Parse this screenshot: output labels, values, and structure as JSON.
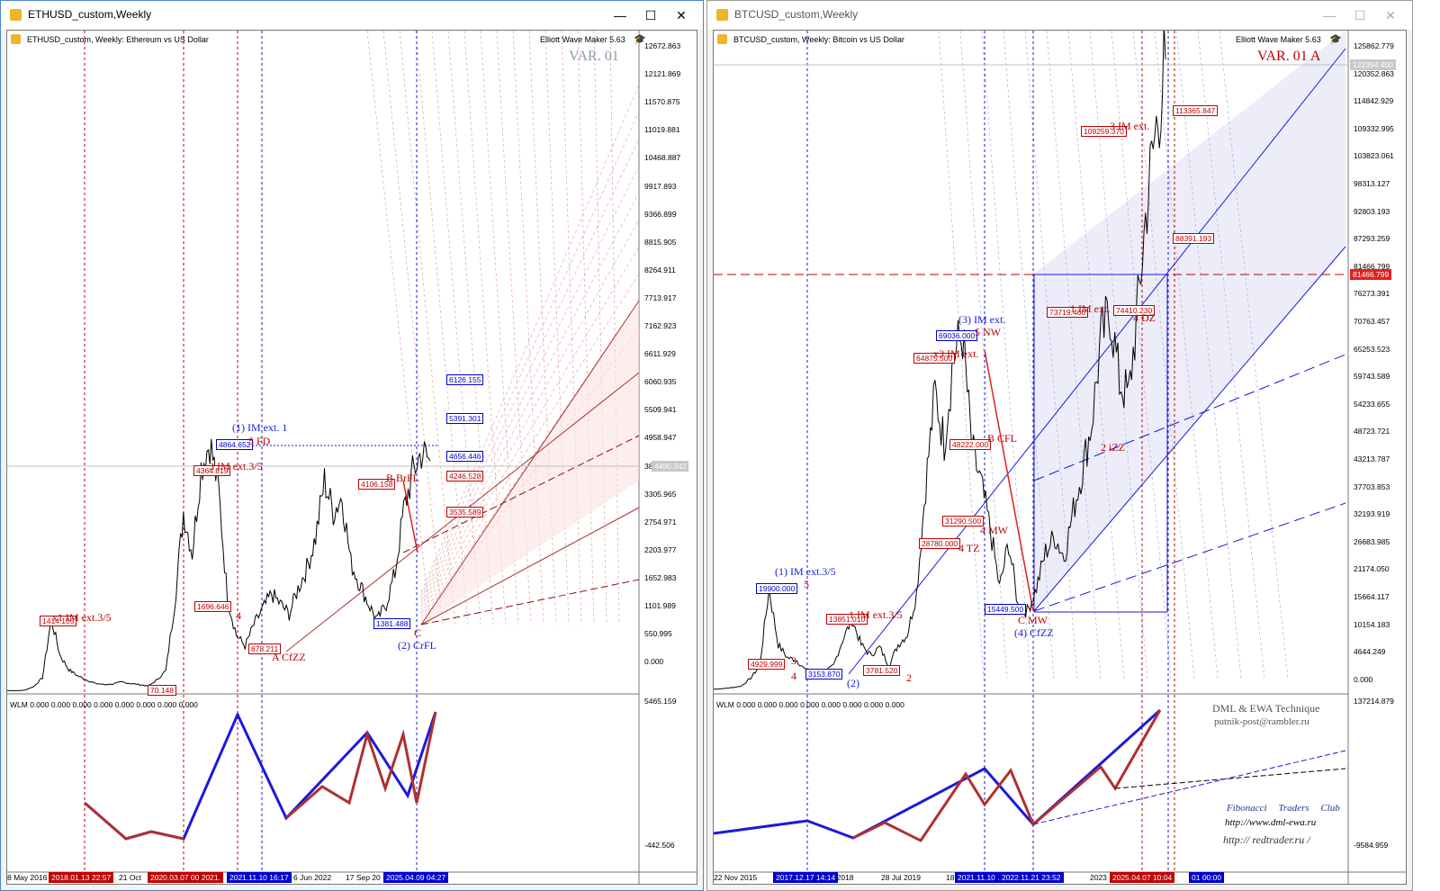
{
  "eth": {
    "window_title": "ETHUSD_custom,Weekly",
    "chart_title": "ETHUSD_custom, Weekly:  Ethereum vs US Dollar",
    "plugin": "Elliott Wave Maker 5.63",
    "var_label": "VAR. 01",
    "price_axis": [
      "12672.863",
      "12121.869",
      "11570.875",
      "11019.881",
      "10468.887",
      "9917.893",
      "9366.899",
      "8815.905",
      "8264.911",
      "7713.917",
      "7162.923",
      "6611.929",
      "6060.935",
      "5509.941",
      "4958.947",
      "3856.959",
      "3305.965",
      "2754.971",
      "2203.977",
      "1652.983",
      "1101.989",
      "550.995",
      "0.000"
    ],
    "current_price": "4490.342",
    "ind_axis": [
      "5465.159",
      "-442.506"
    ],
    "indicator_label": "WLM 0.000 0.000 0.000 0.000 0.000 0.000 0.000 0.000",
    "dates": [
      "8 May 2016",
      "21 Oct",
      "6 Jun 2022",
      "17 Sep 20"
    ],
    "date_markers": [
      {
        "text": "2018.01.13 22:57",
        "color": "red"
      },
      {
        "text": "2020.03.07 00 2021.",
        "color": "red"
      },
      {
        "text": "2021.11.10 16:17",
        "color": "blue"
      },
      {
        "text": "2025.04.09 04:27",
        "color": "blue"
      }
    ],
    "price_boxes": [
      {
        "text": "4864.652",
        "color": "blue"
      },
      {
        "text": "4364.819",
        "color": "red"
      },
      {
        "text": "4106.158",
        "color": "red"
      },
      {
        "text": "1696.646",
        "color": "red"
      },
      {
        "text": "1414.105",
        "color": "red"
      },
      {
        "text": "878.211",
        "color": "red"
      },
      {
        "text": "70.148",
        "color": "red"
      },
      {
        "text": "1381.488",
        "color": "blue"
      },
      {
        "text": "6126.155",
        "color": "blue"
      },
      {
        "text": "5391.301",
        "color": "blue"
      },
      {
        "text": "4656.446",
        "color": "blue"
      },
      {
        "text": "4246.528",
        "color": "red"
      },
      {
        "text": "3535.589",
        "color": "red"
      }
    ],
    "wave_labels": [
      {
        "text": "(1) IM ext. 1",
        "color": "blue"
      },
      {
        "text": "5 FD",
        "color": "red"
      },
      {
        "text": "3 IM ext.3/5",
        "color": "red"
      },
      {
        "text": "x1 IM ext.3/5",
        "color": "red"
      },
      {
        "text": "4",
        "color": "red"
      },
      {
        "text": "A CfZZ",
        "color": "red"
      },
      {
        "text": "B BrFL",
        "color": "red"
      },
      {
        "text": "C",
        "color": "red"
      },
      {
        "text": "(2) CrFL",
        "color": "blue"
      }
    ],
    "chart_data": {
      "type": "line",
      "title": "ETHUSD_custom, Weekly:  Ethereum vs US Dollar",
      "ylim": [
        0,
        12672.863
      ],
      "x": [
        0,
        10,
        20,
        30,
        40,
        50,
        60,
        70,
        80,
        90,
        100,
        110,
        120,
        130,
        140,
        150,
        160,
        170,
        180,
        190,
        200,
        210,
        220,
        230,
        240,
        250,
        260,
        270,
        280,
        290,
        300,
        310,
        320,
        330,
        340,
        350,
        360,
        370,
        380,
        390,
        400,
        410,
        420,
        430,
        440,
        450,
        460,
        470,
        480
      ],
      "series": [
        {
          "values": [
            12,
            10,
            20,
            90,
            260,
            1414,
            700,
            420,
            300,
            220,
            150,
            130,
            140,
            180,
            150,
            130,
            100,
            220,
            400,
            1696,
            3500,
            2700,
            4364,
            4864,
            3900,
            1800,
            1100,
            878,
            1300,
            1600,
            1900,
            1700,
            1500,
            2000,
            2400,
            3000,
            4106,
            3500,
            3800,
            2500,
            2100,
            1700,
            1381,
            1700,
            2300,
            3535,
            4246,
            4656,
            4490
          ]
        }
      ]
    }
  },
  "btc": {
    "window_title": "BTCUSD_custom,Weekly",
    "chart_title": "BTCUSD_custom, Weekly:  Bitcoin vs US Dollar",
    "plugin": "Elliott Wave Maker 5.63",
    "var_label": "VAR. 01 A",
    "price_axis": [
      "125862.779",
      "120352.863",
      "114842.929",
      "109332.995",
      "103823.061",
      "98313.127",
      "92803.193",
      "87293.259",
      "81466.799",
      "76273.391",
      "70763.457",
      "65253.523",
      "59743.589",
      "54233.655",
      "48723.721",
      "43213.787",
      "37703.853",
      "32193.919",
      "26683.985",
      "21174.050",
      "15664.117",
      "10154.183",
      "4644.249",
      "0.000"
    ],
    "current_price": "122394.400",
    "level_81466": "81466.799",
    "ind_axis": [
      "137214.879",
      "-9584.959"
    ],
    "indicator_label": "WLM 0.000 0.000 0.000 0.000 0.000 0.000 0.000 0.000",
    "dates": [
      "22 Nov 2015",
      "y 2018",
      "28 Jul 2019",
      "18",
      "2023"
    ],
    "date_markers": [
      {
        "text": "2017.12.17 14:14",
        "color": "blue"
      },
      {
        "text": "2021.11.10 . 2022.11.21 23:52",
        "color": "blue"
      },
      {
        "text": "2025.04.07 10:04",
        "color": "red"
      },
      {
        "text": "01 00:00",
        "color": "blue"
      }
    ],
    "price_boxes": [
      {
        "text": "109259.370",
        "color": "red"
      },
      {
        "text": "113365.847",
        "color": "red"
      },
      {
        "text": "88391.193",
        "color": "red"
      },
      {
        "text": "73719.460",
        "color": "red"
      },
      {
        "text": "74410.230",
        "color": "red"
      },
      {
        "text": "69036.000",
        "color": "blue"
      },
      {
        "text": "64875.500",
        "color": "red"
      },
      {
        "text": "48222.000",
        "color": "red"
      },
      {
        "text": "31290.500",
        "color": "red"
      },
      {
        "text": "28780.000",
        "color": "red"
      },
      {
        "text": "19900.000",
        "color": "blue"
      },
      {
        "text": "15449.500",
        "color": "blue"
      },
      {
        "text": "13851.010",
        "color": "red"
      },
      {
        "text": "4929.999",
        "color": "red"
      },
      {
        "text": "3153.870",
        "color": "blue"
      },
      {
        "text": "3781.520",
        "color": "red"
      }
    ],
    "wave_labels": [
      {
        "text": "3 IM ext.",
        "color": "red"
      },
      {
        "text": "4 DZ",
        "color": "red"
      },
      {
        "text": "1 IM ext.",
        "color": "red"
      },
      {
        "text": "(3) IM ext.",
        "color": "blue"
      },
      {
        "text": "5 NW",
        "color": "red"
      },
      {
        "text": "x3 IM ext.",
        "color": "red"
      },
      {
        "text": "B CFL",
        "color": "red"
      },
      {
        "text": "4 MW",
        "color": "red"
      },
      {
        "text": "4 TZ",
        "color": "red"
      },
      {
        "text": "2 iZZ",
        "color": "red"
      },
      {
        "text": "(1) IM ext.3/5",
        "color": "blue"
      },
      {
        "text": "5",
        "color": "red"
      },
      {
        "text": "1 IM ext.3/5",
        "color": "red"
      },
      {
        "text": "C MW",
        "color": "red"
      },
      {
        "text": "(4) CfZZ",
        "color": "blue"
      },
      {
        "text": "3",
        "color": "red"
      },
      {
        "text": "4",
        "color": "red"
      },
      {
        "text": "(2)",
        "color": "blue"
      },
      {
        "text": "2",
        "color": "red"
      }
    ],
    "signature": {
      "line1": "DML & EWA Technique",
      "line2": "putnik-post@rambler.ru",
      "line3": "Fibonacci   Traders   Club",
      "line4": "http://www.dml-ewa.ru",
      "line5": "http:// redtrader.ru /"
    },
    "chart_data": {
      "type": "line",
      "title": "BTCUSD_custom, Weekly:  Bitcoin vs US Dollar",
      "ylim": [
        0,
        125862.779
      ],
      "x": [
        0,
        10,
        20,
        30,
        40,
        50,
        60,
        70,
        80,
        90,
        100,
        110,
        120,
        130,
        140,
        150,
        160,
        170,
        180,
        190,
        200,
        210,
        220,
        230,
        240,
        250,
        260,
        270,
        280,
        290,
        300,
        310,
        320,
        330,
        340,
        350,
        360,
        370,
        380,
        390,
        400,
        410,
        420,
        430,
        440,
        450,
        460,
        470,
        480,
        490
      ],
      "series": [
        {
          "values": [
            400,
            500,
            700,
            1000,
            2500,
            4929,
            19900,
            9000,
            6500,
            6000,
            4000,
            3200,
            3500,
            5000,
            10000,
            13851,
            9000,
            7000,
            8500,
            5000,
            9000,
            11000,
            19000,
            40000,
            58000,
            48222,
            64875,
            69036,
            47000,
            40000,
            31290,
            20000,
            28780,
            16500,
            15449,
            20000,
            27000,
            30000,
            26000,
            35000,
            43000,
            52000,
            68000,
            73719,
            60000,
            57000,
            74410,
            95000,
            109259,
            122394
          ]
        }
      ]
    }
  }
}
